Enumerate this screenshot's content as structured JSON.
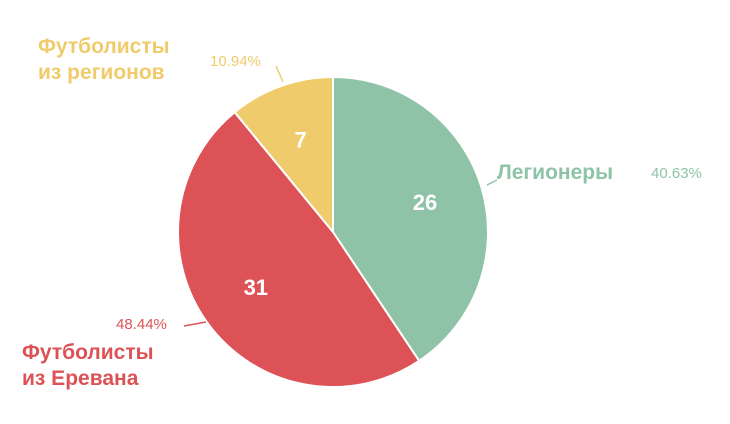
{
  "chart_data": {
    "type": "pie",
    "categories": [
      "Легионеры",
      "Футболисты\nиз Еревана",
      "Футболисты\nиз регионов"
    ],
    "values": [
      26,
      31,
      7
    ],
    "percent_labels": [
      "40.63%",
      "48.44%",
      "10.94%"
    ],
    "colors": [
      "#8ec3a7",
      "#dc5256",
      "#f0cb6b"
    ]
  }
}
